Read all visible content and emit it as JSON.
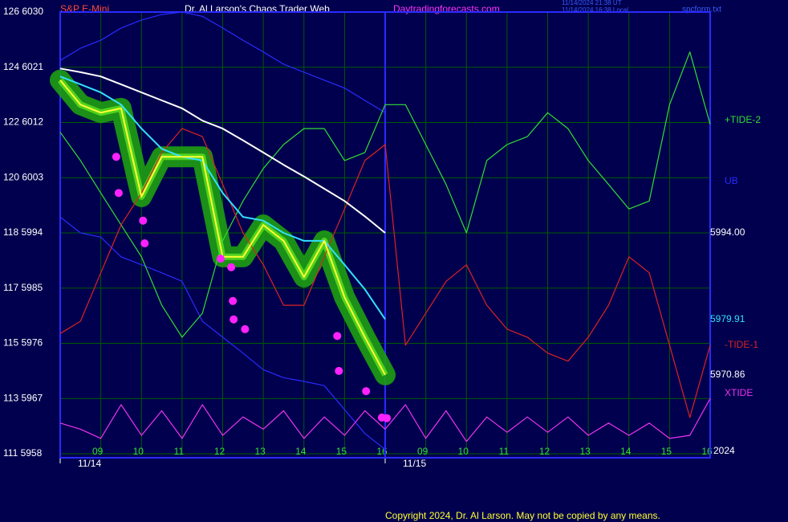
{
  "header": {
    "instrument": "S&P E-Mini",
    "site": "Dr. Al Larson's Chaos Trader Web",
    "url": "Daytradingforecasts.com",
    "stamp_ut": "11/14/2024 21:38 UT",
    "stamp_local": "11/14/2024 16:38 Local",
    "file": "spcform.txt"
  },
  "footer": {
    "copyright": "Copyright 2024, Dr. Al Larson. May not be copied by any means.",
    "year": "2024"
  },
  "chart_data": {
    "type": "line",
    "x": [
      0,
      0.5,
      1,
      1.5,
      2,
      2.5,
      3,
      3.5,
      4,
      4.5,
      5,
      5.5,
      6,
      6.5,
      7,
      7.5,
      8,
      8.5,
      9,
      9.5,
      10,
      10.5,
      11,
      11.5,
      12,
      12.5,
      13,
      13.5,
      14,
      14.5,
      15,
      15.5,
      16
    ],
    "xlim": [
      0,
      16
    ],
    "ylim": [
      5958,
      6030
    ],
    "grid": true,
    "xticks": [
      {
        "value": 1,
        "label": "09"
      },
      {
        "value": 2,
        "label": "10"
      },
      {
        "value": 3,
        "label": "11"
      },
      {
        "value": 4,
        "label": "12"
      },
      {
        "value": 5,
        "label": "13"
      },
      {
        "value": 6,
        "label": "14"
      },
      {
        "value": 7,
        "label": "15"
      },
      {
        "value": 8,
        "label": "16"
      },
      {
        "value": 9,
        "label": "09"
      },
      {
        "value": 10,
        "label": "10"
      },
      {
        "value": 11,
        "label": "11"
      },
      {
        "value": 12,
        "label": "12"
      },
      {
        "value": 13,
        "label": "13"
      },
      {
        "value": 14,
        "label": "14"
      },
      {
        "value": 15,
        "label": "15"
      },
      {
        "value": 16,
        "label": "16"
      }
    ],
    "date_ticks": [
      {
        "value": 0,
        "label": "11/14"
      },
      {
        "value": 8,
        "label": "11/15"
      }
    ],
    "yticks": [
      {
        "value": 6030,
        "label": "126  6030"
      },
      {
        "value": 6021,
        "label": "124  6021"
      },
      {
        "value": 6012,
        "label": "122  6012"
      },
      {
        "value": 6003,
        "label": "120  6003"
      },
      {
        "value": 5994,
        "label": "118  5994"
      },
      {
        "value": 5985,
        "label": "117  5985"
      },
      {
        "value": 5976,
        "label": "115  5976"
      },
      {
        "value": 5967,
        "label": "113  5967"
      },
      {
        "value": 5958,
        "label": "111  5958"
      }
    ],
    "series": [
      {
        "name": "UB",
        "color": "#2a2aff",
        "values": [
          6022.1,
          6024.1,
          6025.4,
          6027.4,
          6028.7,
          6029.6,
          6030,
          6029.3,
          6027.4,
          6025.4,
          6023.5,
          6021.5,
          6020.2,
          6018.9,
          6017.6,
          6015.6,
          6013.6,
          null,
          null,
          null,
          null,
          null,
          null,
          null,
          null,
          null,
          null,
          null,
          null,
          null,
          null,
          null,
          null
        ]
      },
      {
        "color": "#2a2aff",
        "values": [
          5996.6,
          5994.0,
          5993.3,
          5990.1,
          5988.8,
          5987.5,
          5986.1,
          5979.6,
          5977.0,
          5974.4,
          5971.7,
          5970.4,
          5969.8,
          5969.1,
          5965.2,
          5961.3,
          5958.7,
          null,
          null,
          null,
          null,
          null,
          null,
          null,
          null,
          null,
          null,
          null,
          null,
          null,
          null,
          null,
          null
        ]
      },
      {
        "name": "+TIDE-2",
        "color": "#33dd33",
        "values": [
          6010.4,
          6005.8,
          6000.5,
          5995.3,
          5990.1,
          5982.2,
          5977.0,
          5980.9,
          5992.7,
          5999.2,
          6004.5,
          6008.4,
          6011.0,
          6011.0,
          6005.8,
          6007.1,
          6014.9,
          6014.9,
          6008.4,
          6001.9,
          5994.0,
          6005.8,
          6008.4,
          6009.7,
          6013.6,
          6011.0,
          6005.8,
          6001.9,
          5997.9,
          5999.2,
          6014.9,
          6023.5,
          6011.7
        ]
      },
      {
        "name": "-TIDE-1",
        "color": "#dd2222",
        "values": [
          5977.6,
          5979.6,
          5987.5,
          5995.3,
          6000.5,
          6007.1,
          6011.0,
          6009.7,
          6001.9,
          5994.0,
          5988.8,
          5982.2,
          5982.2,
          5990.1,
          5997.9,
          6005.8,
          6008.4,
          5975.7,
          5980.9,
          5986.1,
          5988.8,
          5982.2,
          5978.3,
          5977.0,
          5974.4,
          5973.1,
          5977.0,
          5982.2,
          5990.1,
          5987.5,
          5975.7,
          5963.9,
          5975.7
        ]
      },
      {
        "name": "XTIDE",
        "color": "#ee33ee",
        "values": [
          5963,
          5962,
          5960.5,
          5966,
          5961,
          5965,
          5960.5,
          5966,
          5961,
          5964,
          5962,
          5965,
          5960.5,
          5964,
          5961,
          5965,
          5962,
          5966,
          5960.5,
          5965,
          5960,
          5964,
          5961.5,
          5964,
          5961.5,
          5964,
          5961,
          5963,
          5961,
          5963,
          5960.5,
          5961,
          5967
        ]
      },
      {
        "color": "#ffffff",
        "values": [
          6020.8,
          6020.2,
          6019.5,
          6018.2,
          6016.9,
          6015.6,
          6014.3,
          6012.3,
          6011.0,
          6009.1,
          6007.1,
          6005.1,
          6003.2,
          6001.2,
          5999.2,
          5996.7,
          5994.0,
          null,
          null,
          null,
          null,
          null,
          null,
          null,
          null,
          null,
          null,
          null,
          null,
          null,
          null,
          null,
          null
        ],
        "value_labels": [
          null,
          null,
          null,
          null,
          null,
          null,
          null,
          null,
          null,
          null,
          null,
          null,
          null,
          null,
          null,
          null,
          "5994.00",
          null,
          null,
          null,
          null,
          null,
          null,
          null,
          null,
          null,
          null,
          null,
          null,
          null,
          null,
          null,
          null
        ]
      },
      {
        "color": "#33e0ff",
        "values": [
          6019.5,
          6018.2,
          6016.9,
          6014.9,
          6011.0,
          6007.7,
          6006.4,
          6005.8,
          6000.5,
          5996.6,
          5996.0,
          5994.0,
          5992.7,
          5992.7,
          5988.8,
          5984.8,
          5979.91,
          null,
          null,
          null,
          null,
          null,
          null,
          null,
          null,
          null,
          null,
          null,
          null,
          null,
          null,
          null,
          null
        ],
        "value_labels": [
          null,
          null,
          null,
          null,
          null,
          null,
          null,
          null,
          null,
          null,
          null,
          null,
          null,
          null,
          null,
          null,
          "5979.91",
          null,
          null,
          null,
          null,
          null,
          null,
          null,
          null,
          null,
          null,
          null,
          null,
          null,
          null,
          null,
          null
        ]
      },
      {
        "color": "#ffff33",
        "values": [
          6018.9,
          6014.9,
          6013.6,
          6014.3,
          5999.9,
          6006.4,
          6006.4,
          6006.4,
          5990.1,
          5990.1,
          5995.3,
          5992.7,
          5986.8,
          5992.7,
          5983.5,
          5977.0,
          5970.86,
          null,
          null,
          null,
          null,
          null,
          null,
          null,
          null,
          null,
          null,
          null,
          null,
          null,
          null,
          null,
          null
        ],
        "value_labels": [
          null,
          null,
          null,
          null,
          null,
          null,
          null,
          null,
          null,
          null,
          null,
          null,
          null,
          null,
          null,
          null,
          "5970.86",
          null,
          null,
          null,
          null,
          null,
          null,
          null,
          null,
          null,
          null,
          null,
          null,
          null,
          null,
          null,
          null
        ]
      }
    ],
    "markers": {
      "color": "#ff22ff",
      "x": [
        1.38,
        1.44,
        2.04,
        2.08,
        3.95,
        4.21,
        4.25,
        4.27,
        4.55,
        6.82,
        6.86,
        7.53,
        7.92,
        8.04
      ],
      "values": [
        6006.4,
        6000.5,
        5996.0,
        5992.3,
        5989.8,
        5988.4,
        5982.9,
        5979.9,
        5978.3,
        5977.2,
        5971.5,
        5968.2,
        5963.9,
        5963.8
      ]
    }
  }
}
